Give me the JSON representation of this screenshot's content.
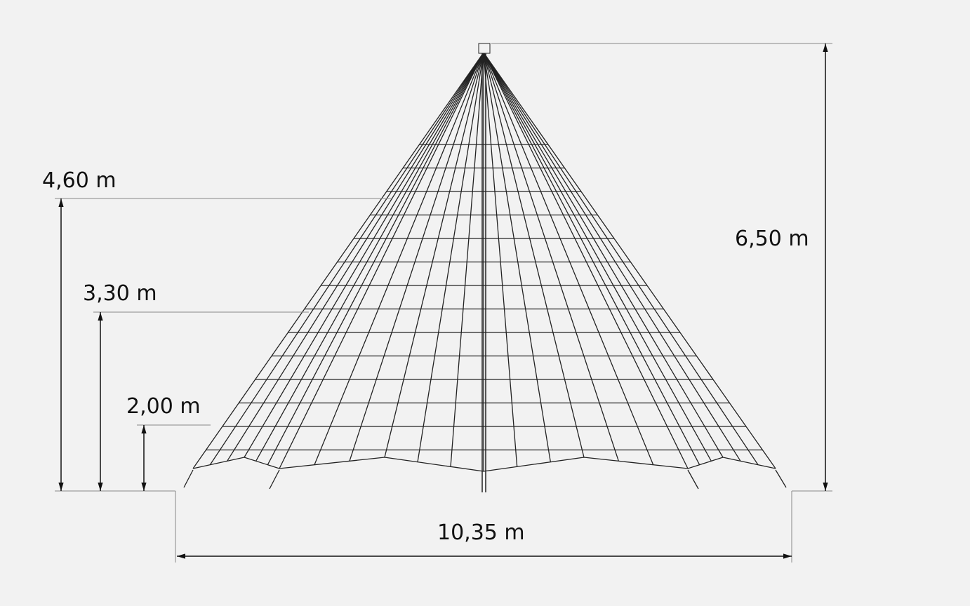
{
  "dimensions": [
    {
      "label": "4,60 m"
    },
    {
      "label": "3,30 m"
    },
    {
      "label": "2,00 m"
    },
    {
      "label": "6,50 m"
    },
    {
      "label": "10,35 m"
    }
  ]
}
